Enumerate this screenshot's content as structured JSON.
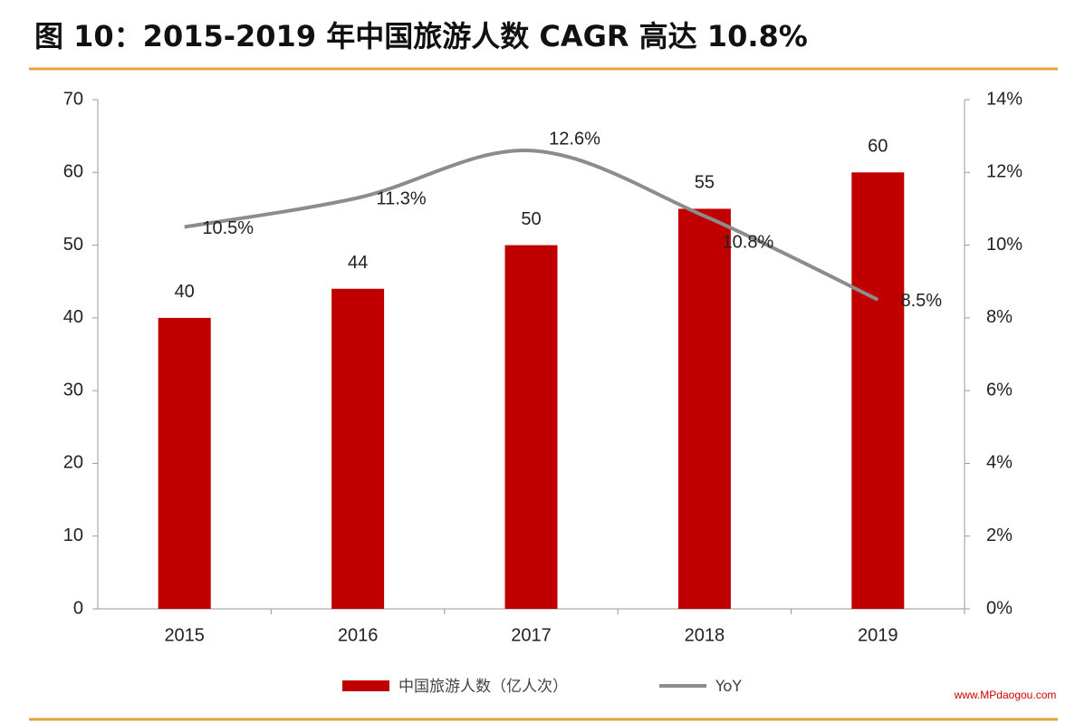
{
  "chart_data": {
    "type": "bar",
    "title": "图 10：2015-2019 年中国旅游人数 CAGR 高达 10.8%",
    "categories": [
      "2015",
      "2016",
      "2017",
      "2018",
      "2019"
    ],
    "series": [
      {
        "name": "中国旅游人数（亿人次）",
        "type": "bar",
        "color": "#c00000",
        "values": [
          40,
          44,
          50,
          55,
          60
        ]
      },
      {
        "name": "YoY",
        "type": "line",
        "axis": "y2",
        "color": "#8c8c8c",
        "values": [
          10.5,
          11.3,
          12.6,
          10.8,
          8.5
        ],
        "value_labels": [
          "10.5%",
          "11.3%",
          "12.6%",
          "10.8%",
          "8.5%"
        ]
      }
    ],
    "ylim": [
      0,
      70
    ],
    "yticks": [
      0,
      10,
      20,
      30,
      40,
      50,
      60,
      70
    ],
    "y2lim": [
      0,
      14
    ],
    "y2ticks": [
      {
        "value": 0,
        "label": "0%"
      },
      {
        "value": 2,
        "label": "2%"
      },
      {
        "value": 4,
        "label": "4%"
      },
      {
        "value": 6,
        "label": "6%"
      },
      {
        "value": 8,
        "label": "8%"
      },
      {
        "value": 10,
        "label": "10%"
      },
      {
        "value": 12,
        "label": "12%"
      },
      {
        "value": 14,
        "label": "14%"
      }
    ],
    "legend": "bottom",
    "watermark": "www.MPdaogou.com"
  }
}
